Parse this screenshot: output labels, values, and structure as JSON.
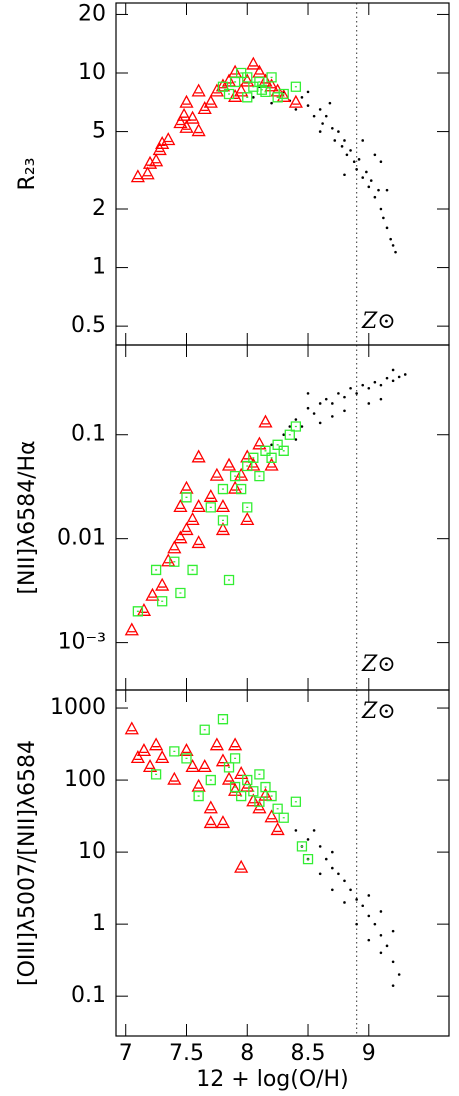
{
  "chart_data": [
    {
      "type": "scatter",
      "ylabel": "R₂₃",
      "annotation": "Z⊙",
      "log_y": true,
      "refline_x": 8.9,
      "xlim": [
        6.92,
        9.66
      ],
      "ylim": [
        0.4,
        22.9
      ],
      "yticks": [
        0.5,
        1,
        2,
        5,
        10,
        20
      ],
      "series": [
        {
          "color": "#000000",
          "marker": "dot",
          "x": [
            8.05,
            8.1,
            8.2,
            8.3,
            8.35,
            8.4,
            8.45,
            8.5,
            8.55,
            8.6,
            8.62,
            8.65,
            8.7,
            8.72,
            8.75,
            8.78,
            8.8,
            8.82,
            8.85,
            8.88,
            8.9,
            8.92,
            8.95,
            8.98,
            9.0,
            9.02,
            9.05,
            9.08,
            9.1,
            9.12,
            9.15,
            9.18,
            9.2,
            9.22,
            9.1,
            9.05,
            8.95,
            8.6,
            8.8,
            9.15,
            8.5,
            8.68
          ],
          "values": [
            7.5,
            8.5,
            7,
            8,
            7.2,
            6.5,
            7.5,
            6.8,
            6,
            6.5,
            5.5,
            6,
            5.2,
            4.5,
            5,
            4.2,
            4.5,
            3.8,
            4,
            3.5,
            3.2,
            3.6,
            2.9,
            3.1,
            2.6,
            2.8,
            2.3,
            2.5,
            2.0,
            1.8,
            1.6,
            1.4,
            1.3,
            1.2,
            3.5,
            3.8,
            4.5,
            5,
            3,
            2.5,
            8,
            7
          ]
        },
        {
          "color": "#ff0000",
          "marker": "triangle",
          "x": [
            7.1,
            7.18,
            7.2,
            7.25,
            7.28,
            7.3,
            7.35,
            7.45,
            7.48,
            7.5,
            7.55,
            7.6,
            7.5,
            7.6,
            7.7,
            7.75,
            7.8,
            7.85,
            7.9,
            7.95,
            8.0,
            8.05,
            8.1,
            8.15,
            8.2,
            8.25,
            8.3,
            8.4,
            7.65,
            7.9
          ],
          "values": [
            2.9,
            3,
            3.4,
            3.5,
            4,
            4.3,
            4.5,
            5.5,
            6,
            5.2,
            5.8,
            5,
            7,
            8,
            7,
            8,
            8.5,
            9,
            10,
            8,
            9,
            11,
            10,
            9,
            8.5,
            8,
            7.5,
            7,
            6.5,
            7.5
          ]
        },
        {
          "color": "#33ee33",
          "marker": "square",
          "x": [
            7.8,
            7.9,
            7.95,
            8.0,
            8.05,
            8.1,
            8.15,
            8.2,
            8.25,
            8.0,
            7.85,
            8.3,
            8.4,
            8.12
          ],
          "values": [
            8.5,
            9,
            10,
            9.5,
            8.5,
            9,
            8,
            9.5,
            7.5,
            7.5,
            7.8,
            7.8,
            8.5,
            8.2
          ]
        }
      ]
    },
    {
      "type": "scatter",
      "ylabel": "[NII]λ6584/Hα",
      "annotation": "Z⊙",
      "log_y": true,
      "refline_x": 8.9,
      "xlim": [
        6.92,
        9.66
      ],
      "ylim": [
        0.00035,
        0.73
      ],
      "yticks": [
        {
          "value": 0.001,
          "label": "10⁻³"
        },
        0.01,
        0.1
      ],
      "series": [
        {
          "color": "#000000",
          "marker": "dot",
          "x": [
            8.2,
            8.3,
            8.35,
            8.4,
            8.45,
            8.5,
            8.55,
            8.6,
            8.65,
            8.7,
            8.75,
            8.8,
            8.85,
            8.9,
            8.95,
            9.0,
            9.05,
            9.1,
            9.15,
            9.2,
            9.25,
            9.3,
            8.6,
            8.7,
            8.8,
            9.0,
            9.1,
            8.5,
            8.4,
            9.2
          ],
          "values": [
            0.08,
            0.1,
            0.12,
            0.14,
            0.12,
            0.18,
            0.16,
            0.2,
            0.22,
            0.2,
            0.25,
            0.23,
            0.28,
            0.25,
            0.3,
            0.28,
            0.32,
            0.3,
            0.35,
            0.33,
            0.36,
            0.38,
            0.13,
            0.15,
            0.17,
            0.2,
            0.22,
            0.25,
            0.09,
            0.42
          ]
        },
        {
          "color": "#ff0000",
          "marker": "triangle",
          "x": [
            7.05,
            7.15,
            7.22,
            7.3,
            7.35,
            7.4,
            7.45,
            7.5,
            7.55,
            7.6,
            7.5,
            7.6,
            7.7,
            7.75,
            7.8,
            7.85,
            7.9,
            7.95,
            8.0,
            8.05,
            8.1,
            8.15,
            7.6,
            8.0,
            7.8,
            8.2,
            7.45
          ],
          "values": [
            0.0013,
            0.002,
            0.0028,
            0.0035,
            0.006,
            0.008,
            0.01,
            0.012,
            0.015,
            0.02,
            0.03,
            0.009,
            0.025,
            0.04,
            0.02,
            0.05,
            0.03,
            0.04,
            0.06,
            0.05,
            0.08,
            0.13,
            0.06,
            0.015,
            0.012,
            0.05,
            0.02
          ]
        },
        {
          "color": "#33ee33",
          "marker": "square",
          "x": [
            7.1,
            7.25,
            7.3,
            7.4,
            7.45,
            7.5,
            7.55,
            7.7,
            7.8,
            7.85,
            7.9,
            7.95,
            8.0,
            8.05,
            8.1,
            8.15,
            8.2,
            8.25,
            8.3,
            8.35,
            8.4,
            8.0,
            7.8
          ],
          "values": [
            0.002,
            0.005,
            0.0025,
            0.006,
            0.003,
            0.025,
            0.005,
            0.02,
            0.03,
            0.004,
            0.04,
            0.03,
            0.05,
            0.06,
            0.04,
            0.07,
            0.06,
            0.08,
            0.07,
            0.1,
            0.12,
            0.02,
            0.015
          ]
        }
      ]
    },
    {
      "type": "scatter",
      "ylabel": "[OIII]λ5007/[NII]λ6584",
      "annotation": "Z⊙",
      "xlabel": "12 + log(O/H)",
      "log_y": true,
      "refline_x": 8.9,
      "xlim": [
        6.92,
        9.66
      ],
      "ylim": [
        0.028,
        1780
      ],
      "xticks": [
        7,
        7.5,
        8,
        8.5,
        9
      ],
      "yticks": [
        0.1,
        1,
        10,
        100,
        1000
      ],
      "series": [
        {
          "color": "#000000",
          "marker": "dot",
          "x": [
            8.4,
            8.5,
            8.6,
            8.65,
            8.7,
            8.75,
            8.8,
            8.85,
            8.9,
            8.95,
            9.0,
            9.05,
            9.1,
            9.15,
            9.2,
            9.25,
            9.2,
            8.6,
            8.7,
            8.8,
            8.9,
            9.0,
            9.1,
            8.5,
            8.55,
            8.7,
            9.0,
            9.1,
            9.2,
            8.45
          ],
          "values": [
            20,
            15,
            12,
            8,
            6,
            5,
            4,
            3,
            2.2,
            1.8,
            1.3,
            1,
            0.7,
            0.5,
            0.3,
            0.2,
            0.14,
            5,
            3,
            2,
            1,
            0.6,
            0.4,
            8,
            20,
            10,
            2.5,
            1.5,
            0.8,
            12
          ]
        },
        {
          "color": "#ff0000",
          "marker": "triangle",
          "x": [
            7.05,
            7.1,
            7.15,
            7.2,
            7.25,
            7.3,
            7.4,
            7.5,
            7.55,
            7.6,
            7.65,
            7.7,
            7.75,
            7.8,
            7.85,
            7.9,
            7.95,
            8.0,
            8.05,
            8.1,
            8.15,
            8.2,
            8.25,
            7.8,
            7.95,
            7.7,
            7.9
          ],
          "values": [
            500,
            200,
            250,
            150,
            300,
            200,
            100,
            250,
            150,
            80,
            150,
            40,
            300,
            180,
            100,
            70,
            120,
            80,
            50,
            40,
            60,
            30,
            20,
            25,
            6,
            25,
            300
          ]
        },
        {
          "color": "#33ee33",
          "marker": "square",
          "x": [
            7.25,
            7.4,
            7.5,
            7.6,
            7.65,
            7.7,
            7.8,
            7.85,
            7.9,
            7.95,
            8.0,
            8.05,
            8.1,
            8.15,
            8.2,
            8.25,
            8.3,
            8.4,
            8.45,
            8.5,
            8.1,
            7.9
          ],
          "values": [
            120,
            250,
            200,
            60,
            500,
            100,
            700,
            150,
            80,
            60,
            100,
            70,
            50,
            80,
            60,
            40,
            30,
            50,
            12,
            8,
            120,
            200
          ]
        }
      ]
    }
  ]
}
